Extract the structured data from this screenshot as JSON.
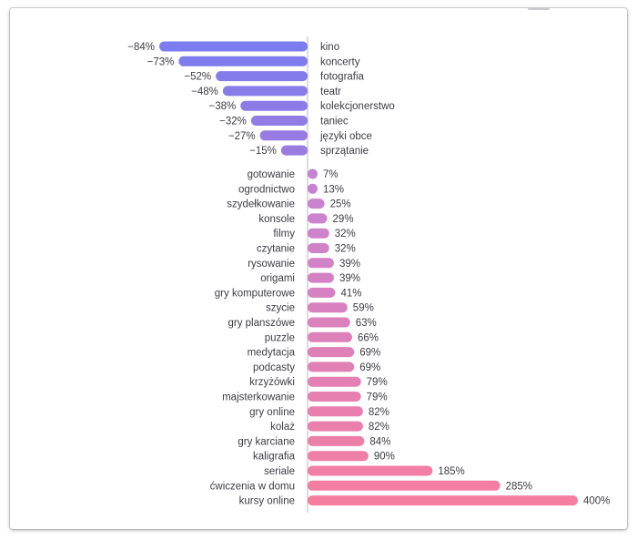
{
  "chart_data": {
    "type": "bar",
    "orientation": "horizontal",
    "title": "",
    "xlabel": "",
    "ylabel": "",
    "negative_label_side": "left",
    "colors": {
      "negative_start": "#7b7cf0",
      "negative_end": "#9a7be0",
      "positive_start": "#c583d4",
      "positive_end": "#f57ea0",
      "axis": "#b8b8c2"
    },
    "negative": [
      {
        "category": "kino",
        "value": -84,
        "label": "−84%"
      },
      {
        "category": "koncerty",
        "value": -73,
        "label": "−73%"
      },
      {
        "category": "fotografia",
        "value": -52,
        "label": "−52%"
      },
      {
        "category": "teatr",
        "value": -48,
        "label": "−48%"
      },
      {
        "category": "kolekcjonerstwo",
        "value": -38,
        "label": "−38%"
      },
      {
        "category": "taniec",
        "value": -32,
        "label": "−32%"
      },
      {
        "category": "języki obce",
        "value": -27,
        "label": "−27%"
      },
      {
        "category": "sprzątanie",
        "value": -15,
        "label": "−15%"
      }
    ],
    "positive": [
      {
        "category": "gotowanie",
        "value": 7,
        "label": "7%"
      },
      {
        "category": "ogrodnictwo",
        "value": 13,
        "label": "13%"
      },
      {
        "category": "szydełkowanie",
        "value": 25,
        "label": "25%"
      },
      {
        "category": "konsole",
        "value": 29,
        "label": "29%"
      },
      {
        "category": "filmy",
        "value": 32,
        "label": "32%"
      },
      {
        "category": "czytanie",
        "value": 32,
        "label": "32%"
      },
      {
        "category": "rysowanie",
        "value": 39,
        "label": "39%"
      },
      {
        "category": "origami",
        "value": 39,
        "label": "39%"
      },
      {
        "category": "gry komputerowe",
        "value": 41,
        "label": "41%"
      },
      {
        "category": "szycie",
        "value": 59,
        "label": "59%"
      },
      {
        "category": "gry planszówe",
        "value": 63,
        "label": "63%"
      },
      {
        "category": "puzzle",
        "value": 66,
        "label": "66%"
      },
      {
        "category": "medytacja",
        "value": 69,
        "label": "69%"
      },
      {
        "category": "podcasty",
        "value": 69,
        "label": "69%"
      },
      {
        "category": "krzyżówki",
        "value": 79,
        "label": "79%"
      },
      {
        "category": "majsterkowanie",
        "value": 79,
        "label": "79%"
      },
      {
        "category": "gry online",
        "value": 82,
        "label": "82%"
      },
      {
        "category": "kolaż",
        "value": 82,
        "label": "82%"
      },
      {
        "category": "gry karciane",
        "value": 84,
        "label": "84%"
      },
      {
        "category": "kaligrafia",
        "value": 90,
        "label": "90%"
      },
      {
        "category": "seriale",
        "value": 185,
        "label": "185%"
      },
      {
        "category": "ćwiczenia w domu",
        "value": 285,
        "label": "285%"
      },
      {
        "category": "kursy online",
        "value": 400,
        "label": "400%"
      }
    ]
  }
}
